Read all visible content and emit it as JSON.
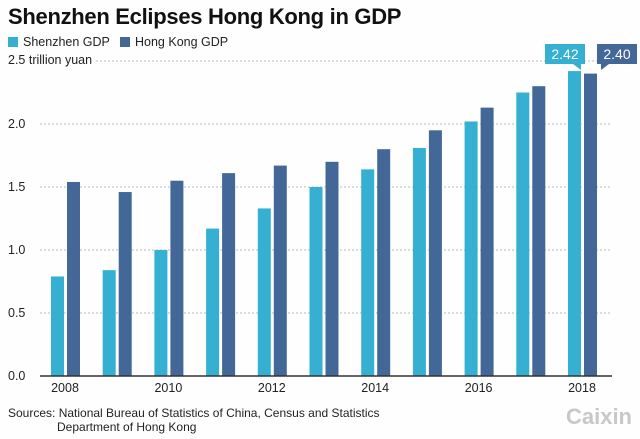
{
  "chart_data": {
    "type": "bar",
    "title": "Shenzhen Eclipses Hong Kong in GDP",
    "ylabel": "2.5 trillion yuan",
    "ylim": [
      0,
      2.5
    ],
    "yticks": [
      "0.0",
      "0.5",
      "1.0",
      "1.5",
      "2.0"
    ],
    "categories": [
      "2008",
      "2009",
      "2010",
      "2011",
      "2012",
      "2013",
      "2014",
      "2015",
      "2016",
      "2017",
      "2018"
    ],
    "xtick_labels": [
      "2008",
      "2010",
      "2012",
      "2014",
      "2016",
      "2018"
    ],
    "series": [
      {
        "name": "Shenzhen GDP",
        "color": "#35b0d3",
        "values": [
          0.79,
          0.84,
          1.0,
          1.17,
          1.33,
          1.5,
          1.64,
          1.81,
          2.02,
          2.25,
          2.42
        ]
      },
      {
        "name": "Hong Kong GDP",
        "color": "#436897",
        "values": [
          1.54,
          1.46,
          1.55,
          1.61,
          1.67,
          1.7,
          1.8,
          1.95,
          2.13,
          2.3,
          2.4
        ]
      }
    ],
    "annotations": [
      "2.42",
      "2.40"
    ],
    "legend": "top-left",
    "grid": true
  },
  "source": [
    "Sources: National Bureau of Statistics of China, Census and Statistics",
    "Department of Hong Kong"
  ],
  "logo": "Caixin"
}
